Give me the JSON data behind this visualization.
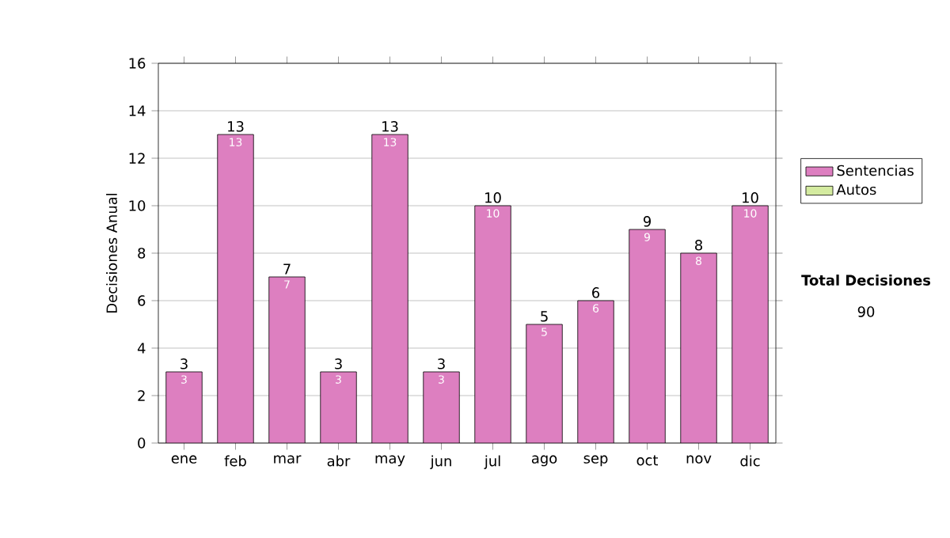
{
  "chart_data": {
    "type": "bar",
    "stacked": true,
    "ylabel": "Decisiones Anual",
    "categories": [
      "ene",
      "feb",
      "mar",
      "abr",
      "may",
      "jun",
      "jul",
      "ago",
      "sep",
      "oct",
      "nov",
      "dic"
    ],
    "series": [
      {
        "name": "Sentencias",
        "color": "#dd7fc0",
        "values": [
          3,
          13,
          7,
          3,
          13,
          3,
          10,
          5,
          6,
          9,
          8,
          10
        ],
        "value_labels": [
          "3",
          "13",
          "7",
          "3",
          "13",
          "3",
          "10",
          "5",
          "6",
          "9",
          "8",
          "10"
        ]
      },
      {
        "name": "Autos",
        "color": "#d4eba0",
        "values": [
          0,
          0,
          0,
          0,
          0,
          0,
          0,
          0,
          0,
          0,
          0,
          0
        ]
      }
    ],
    "totals": [
      "3",
      "13",
      "7",
      "3",
      "13",
      "3",
      "10",
      "5",
      "6",
      "9",
      "8",
      "10"
    ],
    "ylim": [
      0,
      16
    ],
    "yticks": [
      0,
      2,
      4,
      6,
      8,
      10,
      12,
      14,
      16
    ],
    "grid": "y",
    "legend": "right",
    "annotations": [
      "Total Decisiones",
      "90"
    ]
  }
}
